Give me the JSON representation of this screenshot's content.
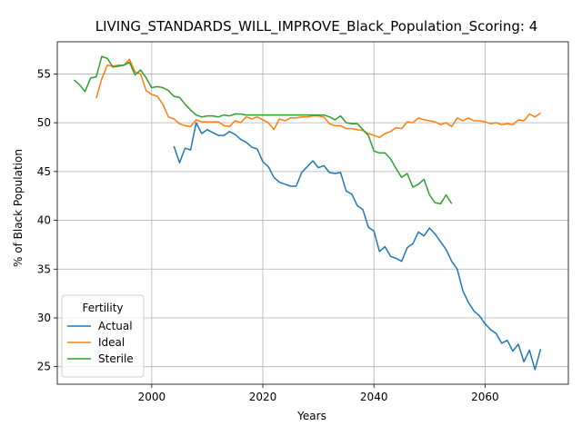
{
  "chart_data": {
    "type": "line",
    "title": "LIVING_STANDARDS_WILL_IMPROVE_Black_Population_Scoring: 4",
    "xlabel": "Years",
    "ylabel": "% of Black Population",
    "xlim": [
      1983,
      2075
    ],
    "ylim": [
      23.2,
      58.3
    ],
    "xticks": [
      2000,
      2020,
      2040,
      2060
    ],
    "yticks": [
      25,
      30,
      35,
      40,
      45,
      50,
      55
    ],
    "grid": true,
    "legend": {
      "title": "Fertility",
      "placement": "lower-left"
    },
    "series": [
      {
        "name": "Actual",
        "color": "#1f77b4",
        "x": [
          2004,
          2005,
          2006,
          2007,
          2008,
          2009,
          2010,
          2011,
          2012,
          2013,
          2014,
          2015,
          2016,
          2017,
          2018,
          2019,
          2020,
          2021,
          2022,
          2023,
          2024,
          2025,
          2026,
          2027,
          2028,
          2029,
          2030,
          2031,
          2032,
          2033,
          2034,
          2035,
          2036,
          2037,
          2038,
          2039,
          2040,
          2041,
          2042,
          2043,
          2044,
          2045,
          2046,
          2047,
          2048,
          2049,
          2050,
          2051,
          2052,
          2053,
          2054,
          2055,
          2056,
          2057,
          2058,
          2059,
          2060,
          2061,
          2062,
          2063,
          2064,
          2065,
          2066,
          2067,
          2068,
          2069,
          2070
        ],
        "y": [
          47.6,
          45.9,
          47.4,
          47.2,
          50.0,
          48.9,
          49.3,
          49.0,
          48.7,
          48.7,
          49.1,
          48.8,
          48.3,
          48.0,
          47.5,
          47.3,
          46.0,
          45.5,
          44.4,
          43.9,
          43.7,
          43.5,
          43.5,
          44.9,
          45.5,
          46.1,
          45.4,
          45.6,
          44.9,
          44.8,
          44.9,
          43.0,
          42.7,
          41.5,
          41.1,
          39.3,
          38.9,
          36.8,
          37.3,
          36.3,
          36.1,
          35.8,
          37.2,
          37.6,
          38.8,
          38.4,
          39.2,
          38.6,
          37.8,
          37.0,
          35.8,
          35.0,
          32.8,
          31.6,
          30.7,
          30.2,
          29.4,
          28.8,
          28.4,
          27.4,
          27.7,
          26.6,
          27.3,
          25.5,
          26.7,
          24.7,
          26.8
        ]
      },
      {
        "name": "Ideal",
        "color": "#ff7f0e",
        "x": [
          1990,
          1991,
          1992,
          1993,
          1994,
          1995,
          1996,
          1997,
          1998,
          1999,
          2000,
          2001,
          2002,
          2003,
          2004,
          2005,
          2006,
          2007,
          2008,
          2009,
          2010,
          2011,
          2012,
          2013,
          2014,
          2015,
          2016,
          2017,
          2018,
          2019,
          2020,
          2021,
          2022,
          2023,
          2024,
          2025,
          2026,
          2027,
          2028,
          2029,
          2030,
          2031,
          2032,
          2033,
          2034,
          2035,
          2036,
          2037,
          2038,
          2039,
          2040,
          2041,
          2042,
          2043,
          2044,
          2045,
          2046,
          2047,
          2048,
          2049,
          2050,
          2051,
          2052,
          2053,
          2054,
          2055,
          2056,
          2057,
          2058,
          2059,
          2060,
          2061,
          2062,
          2063,
          2064,
          2065,
          2066,
          2067,
          2068,
          2069,
          2070
        ],
        "y": [
          52.5,
          54.5,
          55.9,
          55.8,
          55.9,
          55.9,
          56.5,
          55.2,
          55.0,
          53.3,
          52.9,
          52.7,
          51.9,
          50.6,
          50.4,
          49.9,
          49.7,
          49.6,
          50.3,
          50.1,
          50.1,
          50.1,
          50.1,
          49.7,
          49.6,
          50.2,
          50.0,
          50.6,
          50.4,
          50.6,
          50.3,
          50.0,
          49.3,
          50.4,
          50.2,
          50.5,
          50.5,
          50.6,
          50.6,
          50.7,
          50.7,
          50.6,
          49.9,
          49.7,
          49.7,
          49.4,
          49.4,
          49.3,
          49.2,
          48.9,
          48.7,
          48.5,
          48.9,
          49.1,
          49.5,
          49.4,
          50.1,
          50.0,
          50.5,
          50.3,
          50.2,
          50.1,
          49.8,
          50.0,
          49.6,
          50.5,
          50.2,
          50.5,
          50.2,
          50.2,
          50.1,
          49.9,
          50.0,
          49.8,
          49.9,
          49.8,
          50.3,
          50.2,
          50.9,
          50.6,
          51.0
        ]
      },
      {
        "name": "Sterile",
        "color": "#2ca02c",
        "x": [
          1986,
          1987,
          1988,
          1989,
          1990,
          1991,
          1992,
          1993,
          1994,
          1995,
          1996,
          1997,
          1998,
          1999,
          2000,
          2001,
          2002,
          2003,
          2004,
          2005,
          2006,
          2007,
          2008,
          2009,
          2010,
          2011,
          2012,
          2013,
          2014,
          2015,
          2016,
          2017,
          2018,
          2019,
          2020,
          2021,
          2022,
          2023,
          2024,
          2025,
          2026,
          2027,
          2028,
          2029,
          2030,
          2031,
          2032,
          2033,
          2034,
          2035,
          2036,
          2037,
          2038,
          2039,
          2040,
          2041,
          2042,
          2043,
          2044,
          2045,
          2046,
          2047,
          2048,
          2049,
          2050,
          2051,
          2052,
          2053,
          2054
        ],
        "y": [
          54.4,
          53.9,
          53.2,
          54.6,
          54.7,
          56.8,
          56.6,
          55.7,
          55.8,
          55.9,
          56.2,
          54.9,
          55.4,
          54.6,
          53.6,
          53.7,
          53.6,
          53.3,
          52.7,
          52.6,
          51.9,
          51.3,
          50.8,
          50.6,
          50.7,
          50.7,
          50.6,
          50.8,
          50.7,
          50.9,
          50.9,
          50.8,
          50.8,
          50.8,
          50.8,
          50.8,
          50.8,
          50.8,
          50.8,
          50.8,
          50.8,
          50.8,
          50.8,
          50.8,
          50.8,
          50.8,
          50.6,
          50.3,
          50.7,
          50.0,
          49.9,
          49.9,
          49.3,
          48.7,
          47.1,
          46.9,
          46.9,
          46.3,
          45.3,
          44.4,
          44.8,
          43.4,
          43.7,
          44.2,
          42.6,
          41.8,
          41.7,
          42.6,
          41.7
        ]
      }
    ]
  }
}
